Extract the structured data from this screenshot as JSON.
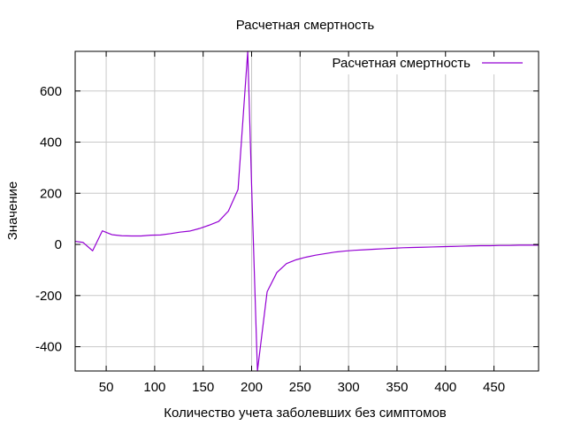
{
  "chart_data": {
    "type": "line",
    "title": "Расчетная смертность",
    "xlabel": "Количество учета заболевших без симптомов",
    "ylabel": "Значение",
    "xlim": [
      18,
      496
    ],
    "ylim": [
      -495,
      755
    ],
    "xticks": [
      50,
      100,
      150,
      200,
      250,
      300,
      350,
      400,
      450
    ],
    "yticks": [
      -400,
      -200,
      0,
      200,
      400,
      600
    ],
    "grid": true,
    "legend_position": "top-right",
    "series": [
      {
        "name": "Расчетная смертность",
        "color": "#9400d3",
        "x": [
          18,
          26,
          36,
          46,
          56,
          66,
          76,
          86,
          96,
          106,
          116,
          126,
          136,
          146,
          156,
          166,
          176,
          186,
          196,
          200,
          206,
          216,
          226,
          236,
          246,
          256,
          266,
          276,
          286,
          296,
          306,
          316,
          326,
          336,
          346,
          356,
          366,
          376,
          386,
          396,
          406,
          416,
          426,
          436,
          446,
          456,
          466,
          476,
          486,
          496
        ],
        "y": [
          12,
          8,
          -25,
          53,
          38,
          34,
          33,
          33,
          36,
          37,
          42,
          48,
          52,
          62,
          75,
          90,
          130,
          215,
          755,
          230,
          -495,
          -185,
          -110,
          -75,
          -60,
          -50,
          -42,
          -36,
          -30,
          -26,
          -23,
          -21,
          -19,
          -17,
          -15,
          -13,
          -12,
          -11,
          -10,
          -9,
          -8,
          -7,
          -6,
          -5,
          -5,
          -4,
          -4,
          -3,
          -3,
          -3
        ]
      }
    ]
  }
}
